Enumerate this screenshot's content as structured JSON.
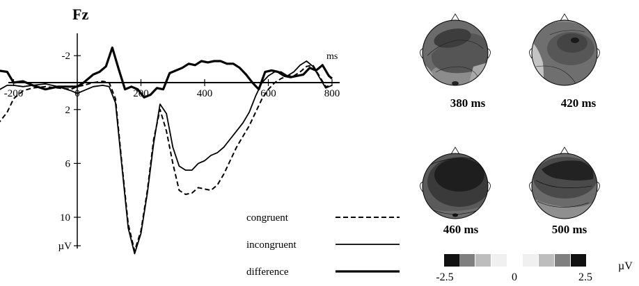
{
  "chart_data": {
    "type": "line",
    "title": "Fz",
    "xlabel": "ms",
    "ylabel": "µV",
    "xlim": [
      -250,
      800
    ],
    "ylim": [
      -4,
      12.5
    ],
    "y_inverted": true,
    "x_ticks": [
      -200,
      0,
      200,
      400,
      600,
      800
    ],
    "x_tick_labels": [
      "-200",
      "0",
      "200",
      "400",
      "600",
      "800"
    ],
    "y_ticks": [
      -2,
      2,
      6,
      10
    ],
    "y_tick_labels": [
      "-2",
      "2",
      "6",
      "10"
    ],
    "y_unit_label": "µV",
    "legend_position": "bottom",
    "series": [
      {
        "name": "congruent",
        "style": "dashed",
        "x": [
          -250,
          -220,
          -200,
          -170,
          -140,
          -100,
          -60,
          -20,
          0,
          20,
          50,
          80,
          100,
          120,
          140,
          160,
          180,
          200,
          220,
          240,
          260,
          280,
          300,
          320,
          340,
          360,
          380,
          400,
          420,
          440,
          460,
          480,
          500,
          520,
          540,
          560,
          580,
          600,
          620,
          640,
          660,
          680,
          700,
          720,
          740,
          760,
          780,
          800
        ],
        "y": [
          3.1,
          2.2,
          1.2,
          0.6,
          0.4,
          0.3,
          0.4,
          0.5,
          0.3,
          0.2,
          0.0,
          -0.1,
          0.0,
          1.2,
          6.0,
          10.5,
          12.5,
          11.0,
          8.0,
          4.2,
          2.0,
          3.6,
          6.0,
          8.0,
          8.3,
          8.2,
          7.8,
          7.9,
          8.0,
          7.6,
          6.8,
          5.8,
          4.8,
          4.0,
          3.2,
          2.2,
          1.2,
          0.5,
          0.0,
          -0.3,
          -0.5,
          -0.5,
          -0.8,
          -1.2,
          -1.3,
          -0.5,
          0.3,
          0.2
        ]
      },
      {
        "name": "incongruent",
        "style": "solid",
        "x": [
          -250,
          -220,
          -200,
          -170,
          -140,
          -100,
          -60,
          -20,
          0,
          20,
          50,
          80,
          100,
          120,
          140,
          160,
          180,
          200,
          220,
          240,
          260,
          280,
          300,
          320,
          340,
          360,
          380,
          400,
          420,
          440,
          460,
          480,
          500,
          520,
          540,
          560,
          580,
          600,
          620,
          640,
          660,
          680,
          700,
          720,
          740,
          760,
          780,
          800
        ],
        "y": [
          0.6,
          0.2,
          0.2,
          0.3,
          0.2,
          0.1,
          0.3,
          0.6,
          0.8,
          0.6,
          0.3,
          0.2,
          0.3,
          1.5,
          6.2,
          10.8,
          12.7,
          11.2,
          8.2,
          4.5,
          1.6,
          2.3,
          4.8,
          6.2,
          6.5,
          6.5,
          6.0,
          5.8,
          5.4,
          5.2,
          4.8,
          4.2,
          3.6,
          3.0,
          2.2,
          1.0,
          0.0,
          -0.5,
          -0.8,
          -0.8,
          -0.5,
          -0.8,
          -1.3,
          -1.6,
          -1.2,
          -0.4,
          0.4,
          0.2
        ]
      },
      {
        "name": "difference",
        "style": "bold-solid",
        "x": [
          -250,
          -220,
          -200,
          -170,
          -140,
          -100,
          -60,
          -20,
          0,
          20,
          50,
          70,
          90,
          110,
          130,
          150,
          170,
          190,
          210,
          230,
          250,
          270,
          290,
          310,
          330,
          350,
          370,
          390,
          410,
          430,
          450,
          470,
          490,
          510,
          530,
          550,
          570,
          590,
          610,
          630,
          650,
          670,
          690,
          710,
          730,
          750,
          770,
          790,
          800
        ],
        "y": [
          -0.9,
          -0.8,
          0.0,
          -0.1,
          0.2,
          0.5,
          0.3,
          0.3,
          0.3,
          0.0,
          -0.6,
          -0.8,
          -1.2,
          -2.6,
          -1.0,
          0.5,
          0.3,
          0.5,
          1.1,
          0.9,
          0.4,
          0.5,
          -0.7,
          -0.9,
          -1.1,
          -1.4,
          -1.3,
          -1.6,
          -1.5,
          -1.6,
          -1.6,
          -1.4,
          -1.4,
          -1.1,
          -0.6,
          0.0,
          0.5,
          -0.8,
          -0.9,
          -0.8,
          -0.5,
          -0.4,
          -0.5,
          -0.6,
          -1.1,
          -0.9,
          -1.3,
          -0.5,
          -0.3
        ]
      }
    ],
    "topomaps": [
      {
        "label": "380 ms"
      },
      {
        "label": "420 ms"
      },
      {
        "label": "460 ms"
      },
      {
        "label": "500 ms"
      }
    ],
    "colorbar": {
      "unit": "µV",
      "min_label": "-2.5",
      "mid_label": "0",
      "max_label": "2.5",
      "swatches": [
        "#111111",
        "#7f7f7f",
        "#bdbdbd",
        "#f0f0f0",
        "#f0f0f0",
        "#bdbdbd",
        "#7f7f7f",
        "#111111"
      ]
    }
  }
}
